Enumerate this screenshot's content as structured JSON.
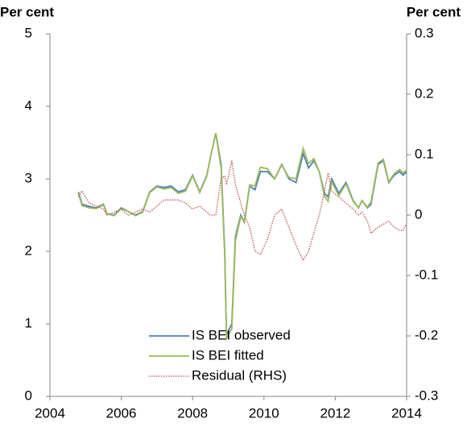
{
  "chart_data": {
    "type": "line",
    "y_label": "Per cent",
    "y2_label": "Per cent",
    "x": [
      2004.8,
      2004.9,
      2005.1,
      2005.3,
      2005.5,
      2005.6,
      2005.8,
      2006.0,
      2006.2,
      2006.4,
      2006.6,
      2006.8,
      2007.0,
      2007.2,
      2007.4,
      2007.6,
      2007.8,
      2008.0,
      2008.2,
      2008.4,
      2008.5,
      2008.65,
      2008.8,
      2008.9,
      2008.95,
      2009.1,
      2009.2,
      2009.35,
      2009.45,
      2009.6,
      2009.75,
      2009.9,
      2010.1,
      2010.3,
      2010.5,
      2010.7,
      2010.9,
      2011.1,
      2011.25,
      2011.4,
      2011.55,
      2011.7,
      2011.8,
      2011.9,
      2012.1,
      2012.3,
      2012.5,
      2012.65,
      2012.75,
      2012.9,
      2013.0,
      2013.2,
      2013.35,
      2013.5,
      2013.65,
      2013.8,
      2013.9,
      2014.0
    ],
    "series": [
      {
        "name": "IS BEI observed",
        "color": "#4a7ebb",
        "style": "solid",
        "axis": "y",
        "values": [
          2.82,
          2.65,
          2.62,
          2.6,
          2.65,
          2.52,
          2.5,
          2.6,
          2.55,
          2.5,
          2.55,
          2.82,
          2.9,
          2.88,
          2.9,
          2.82,
          2.85,
          3.05,
          2.82,
          3.05,
          3.3,
          3.63,
          3.2,
          2.0,
          0.85,
          1.0,
          2.2,
          2.5,
          2.4,
          2.9,
          2.85,
          3.1,
          3.1,
          3.0,
          3.2,
          3.0,
          2.95,
          3.35,
          3.15,
          3.25,
          3.1,
          2.8,
          2.75,
          3.0,
          2.8,
          2.95,
          2.7,
          2.6,
          2.7,
          2.6,
          2.65,
          3.2,
          3.25,
          2.95,
          3.05,
          3.1,
          3.05,
          3.1
        ]
      },
      {
        "name": "IS BEI fitted",
        "color": "#9bbb59",
        "style": "solid",
        "axis": "y",
        "values": [
          2.8,
          2.63,
          2.6,
          2.59,
          2.64,
          2.52,
          2.49,
          2.59,
          2.55,
          2.49,
          2.54,
          2.81,
          2.89,
          2.86,
          2.88,
          2.8,
          2.83,
          3.04,
          2.81,
          3.04,
          3.3,
          3.63,
          3.15,
          1.95,
          0.8,
          0.93,
          2.15,
          2.48,
          2.4,
          2.92,
          2.9,
          3.16,
          3.14,
          3.0,
          3.19,
          3.02,
          3.0,
          3.42,
          3.21,
          3.28,
          3.1,
          2.76,
          2.69,
          2.96,
          2.77,
          2.93,
          2.69,
          2.6,
          2.7,
          2.61,
          2.68,
          3.22,
          3.27,
          2.96,
          3.07,
          3.13,
          3.08,
          3.12
        ]
      },
      {
        "name": "Residual (RHS)",
        "color": "#c0504d",
        "style": "dotted",
        "axis": "y2",
        "values": [
          0.03,
          0.04,
          0.02,
          0.015,
          0.01,
          0.0,
          0.005,
          0.01,
          0.0,
          0.005,
          0.01,
          0.005,
          0.015,
          0.025,
          0.025,
          0.025,
          0.02,
          0.01,
          0.015,
          0.005,
          0.0,
          0.0,
          0.06,
          0.065,
          0.05,
          0.09,
          0.05,
          0.02,
          0.0,
          -0.02,
          -0.06,
          -0.065,
          -0.04,
          0.0,
          0.01,
          -0.02,
          -0.05,
          -0.075,
          -0.06,
          -0.03,
          0.0,
          0.04,
          0.07,
          0.04,
          0.03,
          0.02,
          0.01,
          0.0,
          0.005,
          -0.01,
          -0.03,
          -0.02,
          -0.015,
          -0.01,
          -0.02,
          -0.025,
          -0.025,
          -0.015
        ]
      }
    ],
    "xlim": [
      2004,
      2014
    ],
    "xticks": [
      2004,
      2006,
      2008,
      2010,
      2012,
      2014
    ],
    "ylim": [
      0,
      5
    ],
    "yticks": [
      0,
      1,
      2,
      3,
      4,
      5
    ],
    "y2lim": [
      -0.3,
      0.3
    ],
    "y2ticks": [
      -0.3,
      -0.2,
      -0.1,
      0,
      0.1,
      0.2,
      0.3
    ],
    "legend": "bottom-left"
  }
}
